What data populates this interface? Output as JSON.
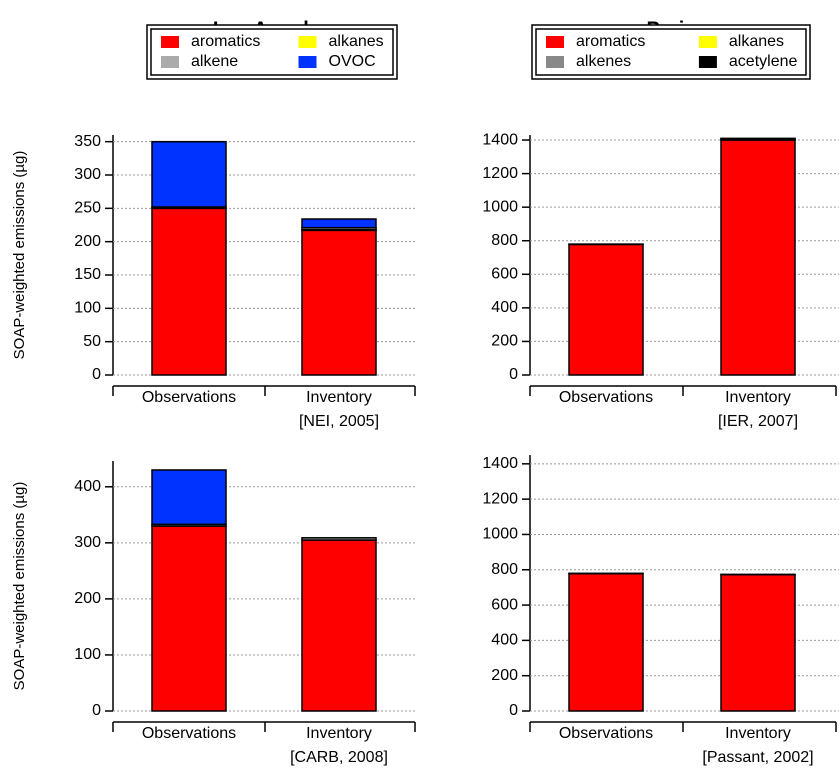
{
  "chart_data": [
    {
      "type": "bar",
      "stacked": true,
      "title": "Los Angeles",
      "ylabel": "SOAP-weighted emissions (µg)",
      "categories": [
        "Observations",
        "Inventory"
      ],
      "category_notes": [
        null,
        "[NEI, 2005]"
      ],
      "series": [
        {
          "name": "aromatics",
          "color": "#ff0000",
          "values": [
            250,
            217
          ]
        },
        {
          "name": "alkanes",
          "color": "#ffff00",
          "values": [
            0,
            1
          ]
        },
        {
          "name": "alkene",
          "color": "#aaaaaa",
          "values": [
            2,
            3
          ]
        },
        {
          "name": "OVOC",
          "color": "#0033ff",
          "values": [
            98,
            13
          ]
        }
      ],
      "ylim": [
        0,
        360
      ],
      "yticks": [
        0,
        50,
        100,
        150,
        200,
        250,
        300,
        350
      ],
      "grid": true
    },
    {
      "type": "bar",
      "stacked": true,
      "title": "Paris",
      "categories": [
        "Observations",
        "Inventory"
      ],
      "category_notes": [
        null,
        "[IER, 2007]"
      ],
      "series": [
        {
          "name": "aromatics",
          "color": "#ff0000",
          "values": [
            778,
            1400
          ]
        },
        {
          "name": "alkanes",
          "color": "#ffff00",
          "values": [
            0,
            3
          ]
        },
        {
          "name": "alkenes",
          "color": "#888888",
          "values": [
            0,
            3
          ]
        },
        {
          "name": "acetylene",
          "color": "#000000",
          "values": [
            2,
            4
          ]
        }
      ],
      "ylim": [
        0,
        1430
      ],
      "yticks": [
        0,
        200,
        400,
        600,
        800,
        1000,
        1200,
        1400
      ],
      "grid": true
    },
    {
      "type": "bar",
      "stacked": true,
      "ylabel": "SOAP-weighted emissions (µg)",
      "categories": [
        "Observations",
        "Inventory"
      ],
      "category_notes": [
        null,
        "[CARB, 2008]"
      ],
      "series": [
        {
          "color": "#ff0000",
          "values": [
            330,
            305
          ]
        },
        {
          "color": "#ffff00",
          "values": [
            0,
            0
          ]
        },
        {
          "color": "#aaaaaa",
          "values": [
            3,
            4
          ]
        },
        {
          "color": "#0033ff",
          "values": [
            97,
            0
          ]
        }
      ],
      "ylim": [
        0,
        446
      ],
      "yticks": [
        0,
        100,
        200,
        300,
        400
      ],
      "grid": true
    },
    {
      "type": "bar",
      "stacked": true,
      "categories": [
        "Observations",
        "Inventory"
      ],
      "category_notes": [
        null,
        "[Passant, 2002]"
      ],
      "series": [
        {
          "color": "#ff0000",
          "values": [
            778,
            772
          ]
        },
        {
          "color": "#ffff00",
          "values": [
            0,
            0
          ]
        },
        {
          "color": "#888888",
          "values": [
            0,
            0
          ]
        },
        {
          "color": "#000000",
          "values": [
            2,
            2
          ]
        }
      ],
      "ylim": [
        0,
        1450
      ],
      "yticks": [
        0,
        200,
        400,
        600,
        800,
        1000,
        1200,
        1400
      ],
      "grid": true
    }
  ]
}
